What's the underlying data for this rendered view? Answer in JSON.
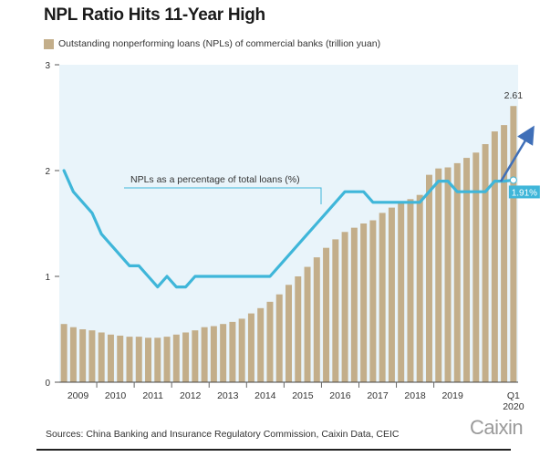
{
  "header": {
    "title": "NPL Ratio Hits 11-Year High",
    "legend_label": "Outstanding nonperforming loans (NPLs) of commercial banks (trillion yuan)"
  },
  "footer": {
    "source": "Sources: China Banking and Insurance Regulatory Commission, Caixin Data, CEIC",
    "brand": "Caixin"
  },
  "colors": {
    "bar": "#c3ae8a",
    "line": "#3fb6d9",
    "plot_bg": "#e9f4fa",
    "arrow": "#3f6fb8",
    "label_box": "#3fb6d9"
  },
  "chart_data": {
    "type": "bar",
    "title": "NPL Ratio Hits 11-Year High",
    "ylim": [
      0,
      3
    ],
    "yticks": [
      "0",
      "1",
      "2",
      "3"
    ],
    "x_tick_labels": [
      "2009",
      "2010",
      "2011",
      "2012",
      "2013",
      "2014",
      "2015",
      "2016",
      "2017",
      "2018",
      "2019",
      "Q1",
      "2020"
    ],
    "bars": {
      "name": "Outstanding nonperforming loans (NPLs) of commercial banks (trillion yuan)",
      "values": [
        0.55,
        0.52,
        0.5,
        0.49,
        0.47,
        0.45,
        0.44,
        0.43,
        0.43,
        0.42,
        0.42,
        0.43,
        0.45,
        0.47,
        0.49,
        0.52,
        0.53,
        0.55,
        0.57,
        0.6,
        0.65,
        0.7,
        0.76,
        0.83,
        0.92,
        1.0,
        1.09,
        1.18,
        1.27,
        1.35,
        1.42,
        1.46,
        1.5,
        1.53,
        1.6,
        1.65,
        1.7,
        1.73,
        1.77,
        1.96,
        2.02,
        2.03,
        2.07,
        2.12,
        2.17,
        2.25,
        2.37,
        2.43,
        2.61
      ]
    },
    "line": {
      "name": "NPLs as a percentage of total loans (%)",
      "values": [
        2.0,
        1.8,
        1.7,
        1.6,
        1.4,
        1.3,
        1.2,
        1.1,
        1.1,
        1.0,
        0.9,
        1.0,
        0.9,
        0.9,
        1.0,
        1.0,
        1.0,
        1.0,
        1.0,
        1.0,
        1.0,
        1.0,
        1.0,
        1.1,
        1.2,
        1.3,
        1.4,
        1.5,
        1.6,
        1.7,
        1.8,
        1.8,
        1.8,
        1.7,
        1.7,
        1.7,
        1.7,
        1.7,
        1.7,
        1.8,
        1.9,
        1.9,
        1.8,
        1.8,
        1.8,
        1.8,
        1.9,
        1.9,
        1.91
      ]
    },
    "annotations": {
      "bar_end_label": "2.61",
      "line_end_label": "1.91%",
      "line_label": "NPLs as a percentage of total loans (%)"
    },
    "grid": false
  }
}
